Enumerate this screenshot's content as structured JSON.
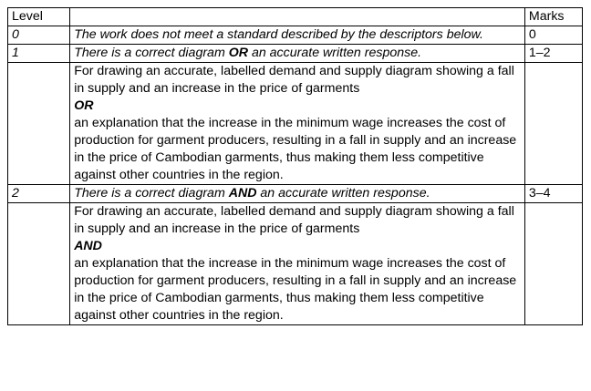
{
  "table": {
    "headers": {
      "level": "Level",
      "description": "",
      "marks": "Marks"
    },
    "rows": [
      {
        "level": "0",
        "descriptor": "The work does not meet a standard described by the descriptors below.",
        "marks": "0"
      },
      {
        "level": "1",
        "descriptor_pre": "There is a correct diagram ",
        "descriptor_key": "OR",
        "descriptor_post": " an accurate written response.",
        "marks": "1–2",
        "detail_part1": "For drawing an accurate, labelled demand and supply diagram showing a fall in supply and an increase in the price of garments",
        "detail_keyword": "OR",
        "detail_part2": "an explanation that the increase in the minimum wage increases the cost of production for garment producers, resulting in a fall in supply and an increase in the price of Cambodian garments, thus making them less competitive against other countries in the region."
      },
      {
        "level": "2",
        "descriptor_pre": "There is a correct diagram ",
        "descriptor_key": "AND",
        "descriptor_post": " an accurate written response.",
        "marks": "3–4",
        "detail_part1": "For drawing an accurate, labelled demand and supply diagram showing a fall in supply and an increase in the price of garments",
        "detail_keyword": "AND",
        "detail_part2": "an explanation that the increase in the minimum wage increases the cost of production for garment producers, resulting in a fall in supply and an increase in the price of Cambodian garments, thus making them less competitive against other countries in the region."
      }
    ]
  }
}
